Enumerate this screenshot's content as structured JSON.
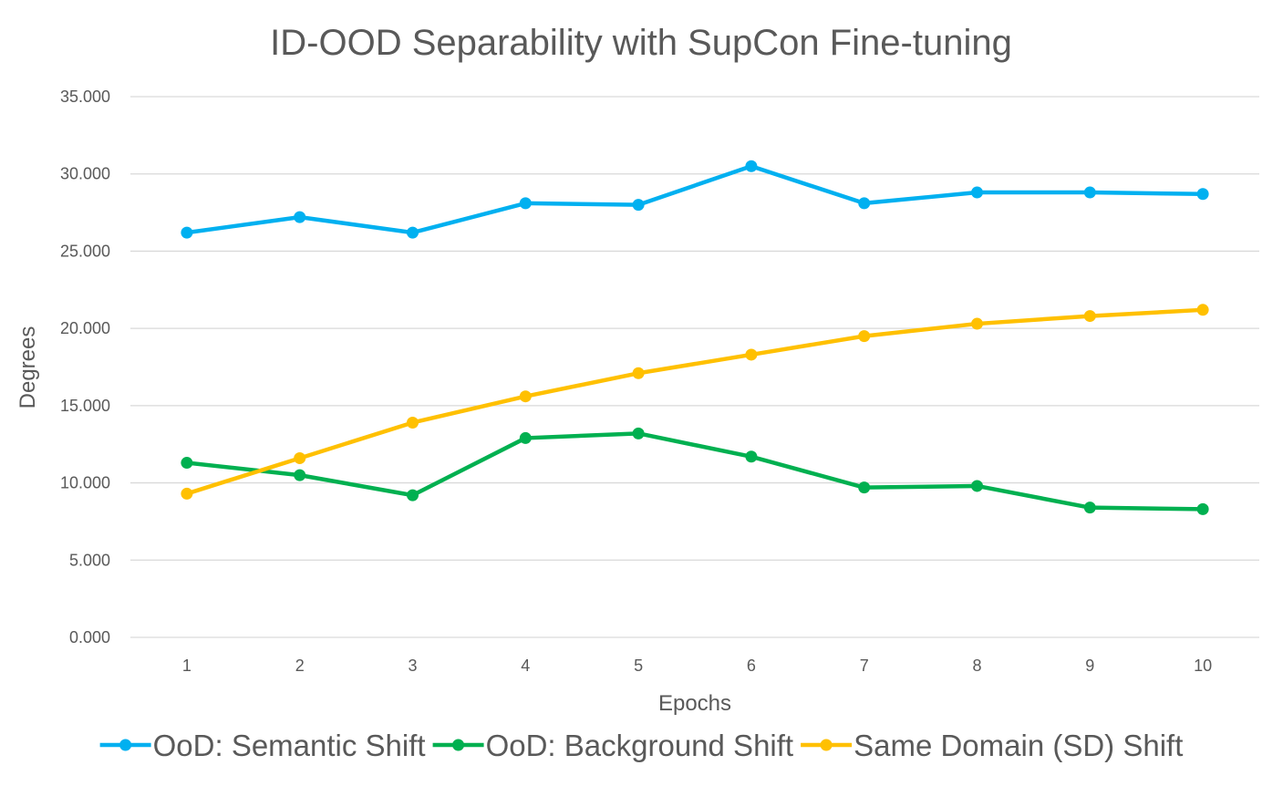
{
  "chart_data": {
    "type": "line",
    "title": "ID-OOD Separability with SupCon Fine-tuning",
    "xlabel": "Epochs",
    "ylabel": "Degrees",
    "categories": [
      "1",
      "2",
      "3",
      "4",
      "5",
      "6",
      "7",
      "8",
      "9",
      "10"
    ],
    "ylim": [
      0,
      35
    ],
    "yticks": [
      "0.000",
      "5.000",
      "10.000",
      "15.000",
      "20.000",
      "25.000",
      "30.000",
      "35.000"
    ],
    "grid": true,
    "legend_position": "bottom",
    "series": [
      {
        "name": "OoD: Semantic Shift",
        "color": "#00B0F0",
        "values": [
          26.2,
          27.2,
          26.2,
          28.1,
          28.0,
          30.5,
          28.1,
          28.8,
          28.8,
          28.7
        ]
      },
      {
        "name": "OoD: Background Shift",
        "color": "#00B050",
        "values": [
          11.3,
          10.5,
          9.2,
          12.9,
          13.2,
          11.7,
          9.7,
          9.8,
          8.4,
          8.3
        ]
      },
      {
        "name": "Same Domain (SD) Shift",
        "color": "#FFC000",
        "values": [
          9.3,
          11.6,
          13.9,
          15.6,
          17.1,
          18.3,
          19.5,
          20.3,
          20.8,
          21.2
        ]
      }
    ]
  }
}
